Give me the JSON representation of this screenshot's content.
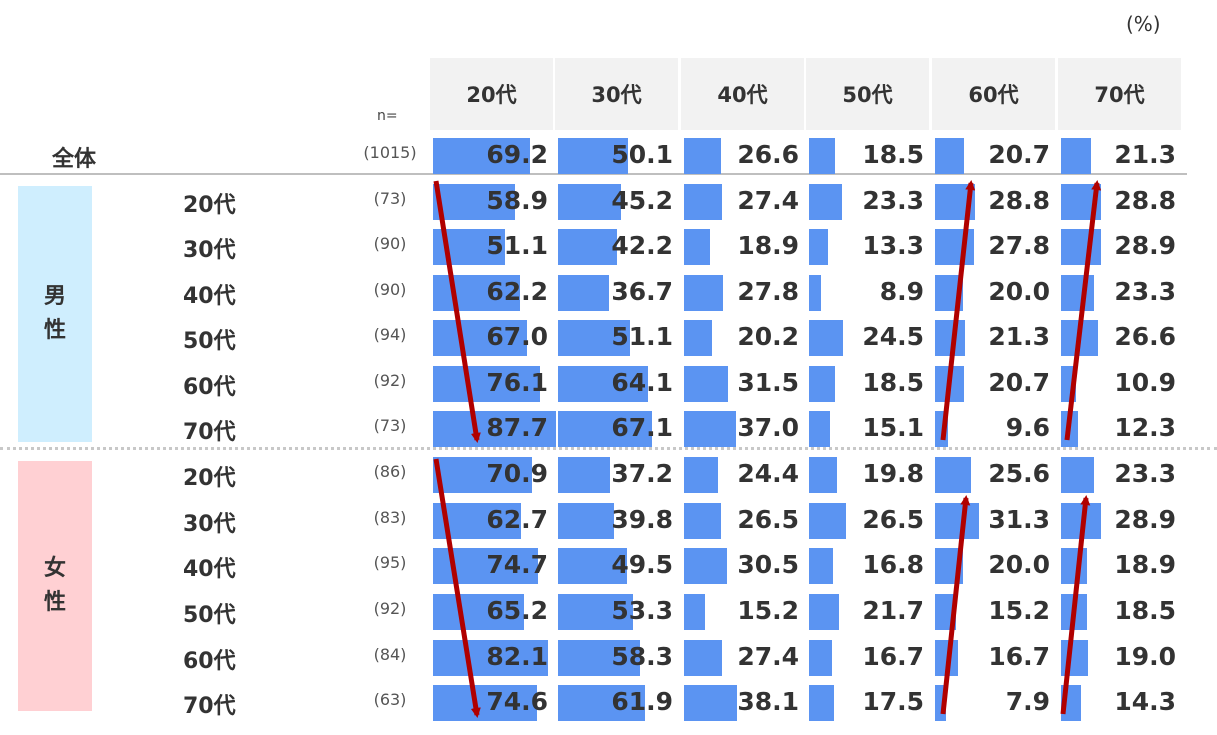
{
  "unit_label": "(%)",
  "n_header": "n=",
  "groups": {
    "male": "男性",
    "female": "女性"
  },
  "colors": {
    "bar": "#5b94f2",
    "arrow": "#b00000",
    "male_bg": "#cfeefe",
    "female_bg": "#ffd0d3",
    "header_bg": "#f2f2f2"
  },
  "chart_data": {
    "type": "table",
    "columns": [
      "20代",
      "30代",
      "40代",
      "50代",
      "60代",
      "70代"
    ],
    "value_max": 100,
    "rows": [
      {
        "group": "all",
        "label": "全体",
        "n": "(1015)",
        "values": [
          69.2,
          50.1,
          26.6,
          18.5,
          20.7,
          21.3
        ]
      },
      {
        "group": "male",
        "label": "20代",
        "n": "(73)",
        "values": [
          58.9,
          45.2,
          27.4,
          23.3,
          28.8,
          28.8
        ]
      },
      {
        "group": "male",
        "label": "30代",
        "n": "(90)",
        "values": [
          51.1,
          42.2,
          18.9,
          13.3,
          27.8,
          28.9
        ]
      },
      {
        "group": "male",
        "label": "40代",
        "n": "(90)",
        "values": [
          62.2,
          36.7,
          27.8,
          8.9,
          20.0,
          23.3
        ]
      },
      {
        "group": "male",
        "label": "50代",
        "n": "(94)",
        "values": [
          67.0,
          51.1,
          20.2,
          24.5,
          21.3,
          26.6
        ]
      },
      {
        "group": "male",
        "label": "60代",
        "n": "(92)",
        "values": [
          76.1,
          64.1,
          31.5,
          18.5,
          20.7,
          10.9
        ]
      },
      {
        "group": "male",
        "label": "70代",
        "n": "(73)",
        "values": [
          87.7,
          67.1,
          37.0,
          15.1,
          9.6,
          12.3
        ]
      },
      {
        "group": "female",
        "label": "20代",
        "n": "(86)",
        "values": [
          70.9,
          37.2,
          24.4,
          19.8,
          25.6,
          23.3
        ]
      },
      {
        "group": "female",
        "label": "30代",
        "n": "(83)",
        "values": [
          62.7,
          39.8,
          26.5,
          26.5,
          31.3,
          28.9
        ]
      },
      {
        "group": "female",
        "label": "40代",
        "n": "(95)",
        "values": [
          74.7,
          49.5,
          30.5,
          16.8,
          20.0,
          18.9
        ]
      },
      {
        "group": "female",
        "label": "50代",
        "n": "(92)",
        "values": [
          65.2,
          53.3,
          15.2,
          21.7,
          15.2,
          18.5
        ]
      },
      {
        "group": "female",
        "label": "60代",
        "n": "(84)",
        "values": [
          82.1,
          58.3,
          27.4,
          16.7,
          16.7,
          19.0
        ]
      },
      {
        "group": "female",
        "label": "70代",
        "n": "(63)",
        "values": [
          74.6,
          61.9,
          38.1,
          17.5,
          7.9,
          14.3
        ]
      }
    ],
    "trend_arrows": [
      {
        "group": "male",
        "column": "20代",
        "direction": "increasing with age"
      },
      {
        "group": "male",
        "column": "60代",
        "direction": "decreasing with age"
      },
      {
        "group": "male",
        "column": "70代",
        "direction": "decreasing with age"
      },
      {
        "group": "female",
        "column": "20代",
        "direction": "increasing with age"
      },
      {
        "group": "female",
        "column": "60代",
        "direction": "decreasing with age"
      },
      {
        "group": "female",
        "column": "70代",
        "direction": "decreasing with age"
      }
    ]
  }
}
